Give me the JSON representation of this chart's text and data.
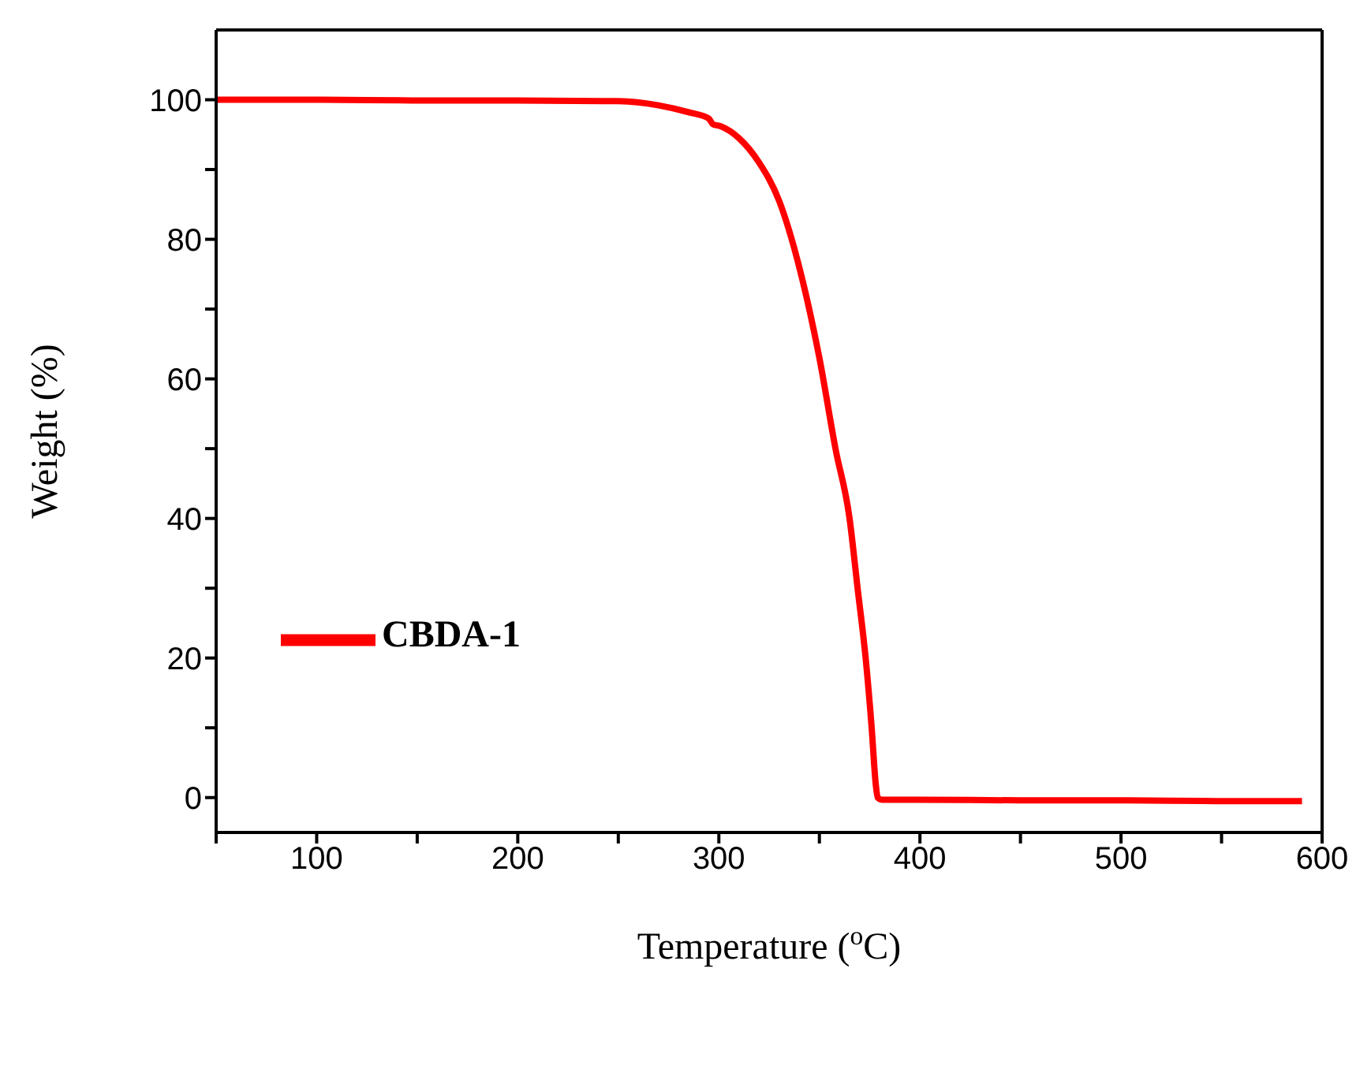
{
  "chart_data": {
    "type": "line",
    "xlabel": "Temperature ($^{o}$C)",
    "ylabel": "Weight (%)",
    "x": [
      50,
      100,
      150,
      200,
      250,
      270,
      285,
      295,
      297,
      301,
      310,
      320,
      330,
      340,
      350,
      358,
      365,
      369,
      373,
      376,
      378,
      379,
      381,
      400,
      450,
      500,
      550,
      590
    ],
    "series": [
      {
        "name": "CBDA-1",
        "color": "#ff0000",
        "values": [
          100,
          100,
          99.9,
          99.9,
          99.8,
          99.2,
          98.2,
          97.3,
          96.5,
          96.2,
          94.5,
          91,
          85.5,
          76,
          63,
          50,
          40,
          30,
          20,
          10,
          2,
          0,
          -0.3,
          -0.3,
          -0.4,
          -0.4,
          -0.5,
          -0.5
        ]
      }
    ],
    "xlim": [
      50,
      600
    ],
    "ylim": [
      -5,
      110
    ],
    "xticks": [
      {
        "value": 50,
        "label": null
      },
      100,
      {
        "value": 150,
        "label": null
      },
      200,
      {
        "value": 250,
        "label": null
      },
      300,
      {
        "value": 350,
        "label": null
      },
      400,
      {
        "value": 450,
        "label": null
      },
      500,
      {
        "value": 550,
        "label": null
      },
      600
    ],
    "yticks": [
      0,
      {
        "value": 10,
        "label": null
      },
      20,
      {
        "value": 30,
        "label": null
      },
      40,
      {
        "value": 50,
        "label": null
      },
      60,
      {
        "value": 70,
        "label": null
      },
      80,
      {
        "value": 90,
        "label": null
      },
      100
    ],
    "legend": "left",
    "marker": "none",
    "line_style": "solid",
    "grid": false
  }
}
